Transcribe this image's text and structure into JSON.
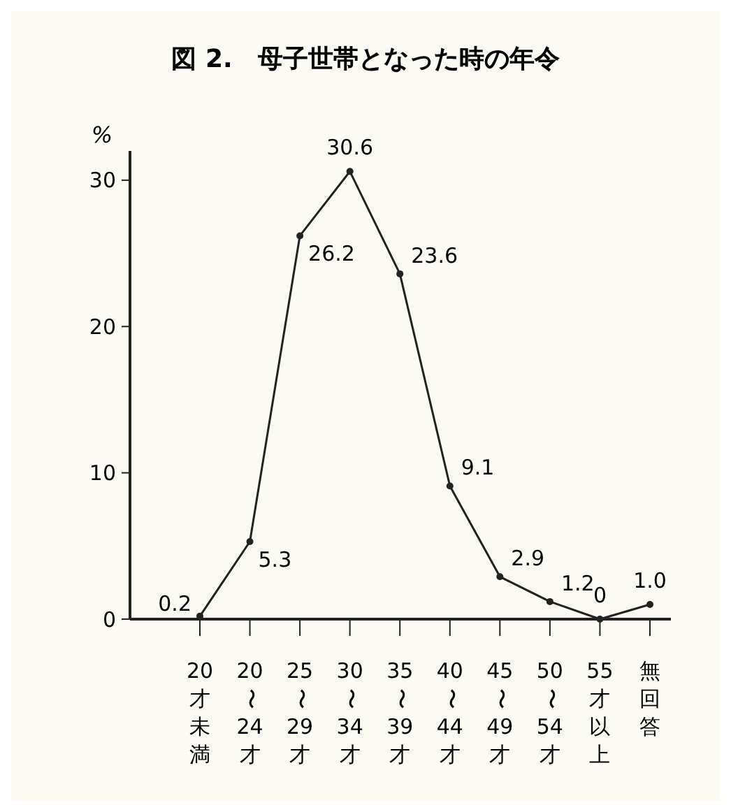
{
  "chart_data": {
    "type": "line",
    "title": "図 2.　母子世帯となった時の年令",
    "ylabel": "%",
    "categories": [
      "20才未満",
      "20〜24才",
      "25〜29才",
      "30〜34才",
      "35〜39才",
      "40〜44才",
      "45〜49才",
      "50〜54才",
      "55才以上",
      "無回答"
    ],
    "series": [
      {
        "color": "#222222",
        "values": [
          0.2,
          5.3,
          26.2,
          30.6,
          23.6,
          9.1,
          2.9,
          1.2,
          0,
          1.0
        ],
        "value_labels": [
          "0.2",
          "5.3",
          "26.2",
          "30.6",
          "23.6",
          "9.1",
          "2.9",
          "1.2",
          "0",
          "1.0"
        ]
      }
    ],
    "ylim": [
      0,
      32
    ],
    "yticks": [
      0,
      10,
      20,
      30
    ],
    "grid": false,
    "marker": "circle",
    "line_style": "solid"
  }
}
